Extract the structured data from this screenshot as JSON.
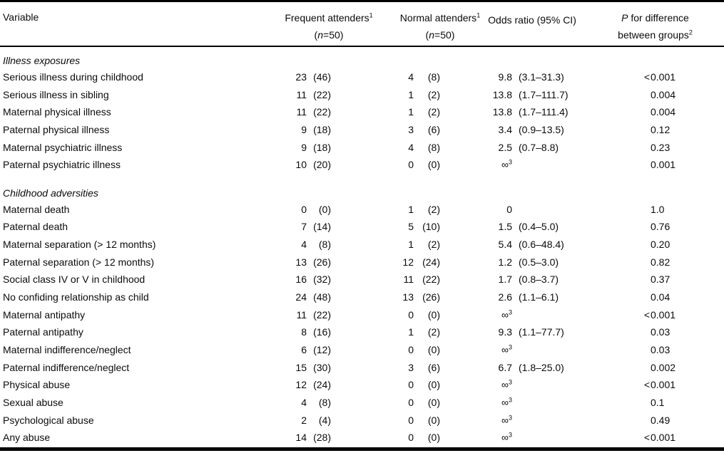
{
  "colors": {
    "text": "#0b0b0b",
    "rule": "#000000",
    "background": "#ffffff"
  },
  "header": {
    "variable": "Variable",
    "frequent": {
      "label": "Frequent attenders",
      "footnote": "1",
      "n_open": "(",
      "n_italic": "n",
      "n_rest": "=50)"
    },
    "normal": {
      "label": "Normal attenders",
      "footnote": "1",
      "n_open": "(",
      "n_italic": "n",
      "n_rest": "=50)"
    },
    "odds_ratio": "Odds ratio (95% CI)",
    "p_col": {
      "p_italic": "P",
      "rest": " for difference",
      "line2": "between groups",
      "footnote": "2"
    }
  },
  "rows": [
    {
      "type": "section",
      "label": "Illness exposures"
    },
    {
      "type": "data",
      "label": "Serious illness during childhood",
      "freq_n": "23",
      "freq_pct": "(46)",
      "norm_n": "4",
      "norm_pct": "(8)",
      "or": "9.8",
      "or_sup": "",
      "ci": "(3.1–31.3)",
      "p_prefix": "<",
      "p": "0.001"
    },
    {
      "type": "data",
      "label": "Serious illness in sibling",
      "freq_n": "11",
      "freq_pct": "(22)",
      "norm_n": "1",
      "norm_pct": "(2)",
      "or": "13.8",
      "or_sup": "",
      "ci": "(1.7–111.7)",
      "p_prefix": "",
      "p": "0.004"
    },
    {
      "type": "data",
      "label": "Maternal physical illness",
      "freq_n": "11",
      "freq_pct": "(22)",
      "norm_n": "1",
      "norm_pct": "(2)",
      "or": "13.8",
      "or_sup": "",
      "ci": "(1.7–111.4)",
      "p_prefix": "",
      "p": "0.004"
    },
    {
      "type": "data",
      "label": "Paternal physical illness",
      "freq_n": "9",
      "freq_pct": "(18)",
      "norm_n": "3",
      "norm_pct": "(6)",
      "or": "3.4",
      "or_sup": "",
      "ci": "(0.9–13.5)",
      "p_prefix": "",
      "p": "0.12"
    },
    {
      "type": "data",
      "label": "Maternal psychiatric illness",
      "freq_n": "9",
      "freq_pct": "(18)",
      "norm_n": "4",
      "norm_pct": "(8)",
      "or": "2.5",
      "or_sup": "",
      "ci": "(0.7–8.8)",
      "p_prefix": "",
      "p": "0.23"
    },
    {
      "type": "data",
      "label": "Paternal psychiatric illness",
      "freq_n": "10",
      "freq_pct": "(20)",
      "norm_n": "0",
      "norm_pct": "(0)",
      "or": "∞",
      "or_sup": "3",
      "ci": "",
      "p_prefix": "",
      "p": "0.001"
    },
    {
      "type": "section",
      "label": "Childhood adversities"
    },
    {
      "type": "data",
      "label": "Maternal death",
      "freq_n": "0",
      "freq_pct": "(0)",
      "norm_n": "1",
      "norm_pct": "(2)",
      "or": "0",
      "or_sup": "",
      "ci": "",
      "p_prefix": "",
      "p": "1.0"
    },
    {
      "type": "data",
      "label": "Paternal death",
      "freq_n": "7",
      "freq_pct": "(14)",
      "norm_n": "5",
      "norm_pct": "(10)",
      "or": "1.5",
      "or_sup": "",
      "ci": "(0.4–5.0)",
      "p_prefix": "",
      "p": "0.76"
    },
    {
      "type": "data",
      "label": "Maternal separation (> 12 months)",
      "freq_n": "4",
      "freq_pct": "(8)",
      "norm_n": "1",
      "norm_pct": "(2)",
      "or": "5.4",
      "or_sup": "",
      "ci": "(0.6–48.4)",
      "p_prefix": "",
      "p": "0.20"
    },
    {
      "type": "data",
      "label": "Paternal separation (> 12 months)",
      "freq_n": "13",
      "freq_pct": "(26)",
      "norm_n": "12",
      "norm_pct": "(24)",
      "or": "1.2",
      "or_sup": "",
      "ci": "(0.5–3.0)",
      "p_prefix": "",
      "p": "0.82"
    },
    {
      "type": "data",
      "label": "Social class IV or V in childhood",
      "freq_n": "16",
      "freq_pct": "(32)",
      "norm_n": "11",
      "norm_pct": "(22)",
      "or": "1.7",
      "or_sup": "",
      "ci": "(0.8–3.7)",
      "p_prefix": "",
      "p": "0.37"
    },
    {
      "type": "data",
      "label": "No confiding relationship as child",
      "freq_n": "24",
      "freq_pct": "(48)",
      "norm_n": "13",
      "norm_pct": "(26)",
      "or": "2.6",
      "or_sup": "",
      "ci": "(1.1–6.1)",
      "p_prefix": "",
      "p": "0.04"
    },
    {
      "type": "data",
      "label": "Maternal antipathy",
      "freq_n": "11",
      "freq_pct": "(22)",
      "norm_n": "0",
      "norm_pct": "(0)",
      "or": "∞",
      "or_sup": "3",
      "ci": "",
      "p_prefix": "<",
      "p": "0.001"
    },
    {
      "type": "data",
      "label": "Paternal antipathy",
      "freq_n": "8",
      "freq_pct": "(16)",
      "norm_n": "1",
      "norm_pct": "(2)",
      "or": "9.3",
      "or_sup": "",
      "ci": "(1.1–77.7)",
      "p_prefix": "",
      "p": "0.03"
    },
    {
      "type": "data",
      "label": "Maternal indifference/neglect",
      "freq_n": "6",
      "freq_pct": "(12)",
      "norm_n": "0",
      "norm_pct": "(0)",
      "or": "∞",
      "or_sup": "3",
      "ci": "",
      "p_prefix": "",
      "p": "0.03"
    },
    {
      "type": "data",
      "label": "Paternal indifference/neglect",
      "freq_n": "15",
      "freq_pct": "(30)",
      "norm_n": "3",
      "norm_pct": "(6)",
      "or": "6.7",
      "or_sup": "",
      "ci": "(1.8–25.0)",
      "p_prefix": "",
      "p": "0.002"
    },
    {
      "type": "data",
      "label": "Physical abuse",
      "freq_n": "12",
      "freq_pct": "(24)",
      "norm_n": "0",
      "norm_pct": "(0)",
      "or": "∞",
      "or_sup": "3",
      "ci": "",
      "p_prefix": "<",
      "p": "0.001"
    },
    {
      "type": "data",
      "label": "Sexual abuse",
      "freq_n": "4",
      "freq_pct": "(8)",
      "norm_n": "0",
      "norm_pct": "(0)",
      "or": "∞",
      "or_sup": "3",
      "ci": "",
      "p_prefix": "",
      "p": "0.1"
    },
    {
      "type": "data",
      "label": "Psychological abuse",
      "freq_n": "2",
      "freq_pct": "(4)",
      "norm_n": "0",
      "norm_pct": "(0)",
      "or": "∞",
      "or_sup": "3",
      "ci": "",
      "p_prefix": "",
      "p": "0.49"
    },
    {
      "type": "data",
      "label": "Any abuse",
      "freq_n": "14",
      "freq_pct": "(28)",
      "norm_n": "0",
      "norm_pct": "(0)",
      "or": "∞",
      "or_sup": "3",
      "ci": "",
      "p_prefix": "<",
      "p": "0.001"
    }
  ]
}
